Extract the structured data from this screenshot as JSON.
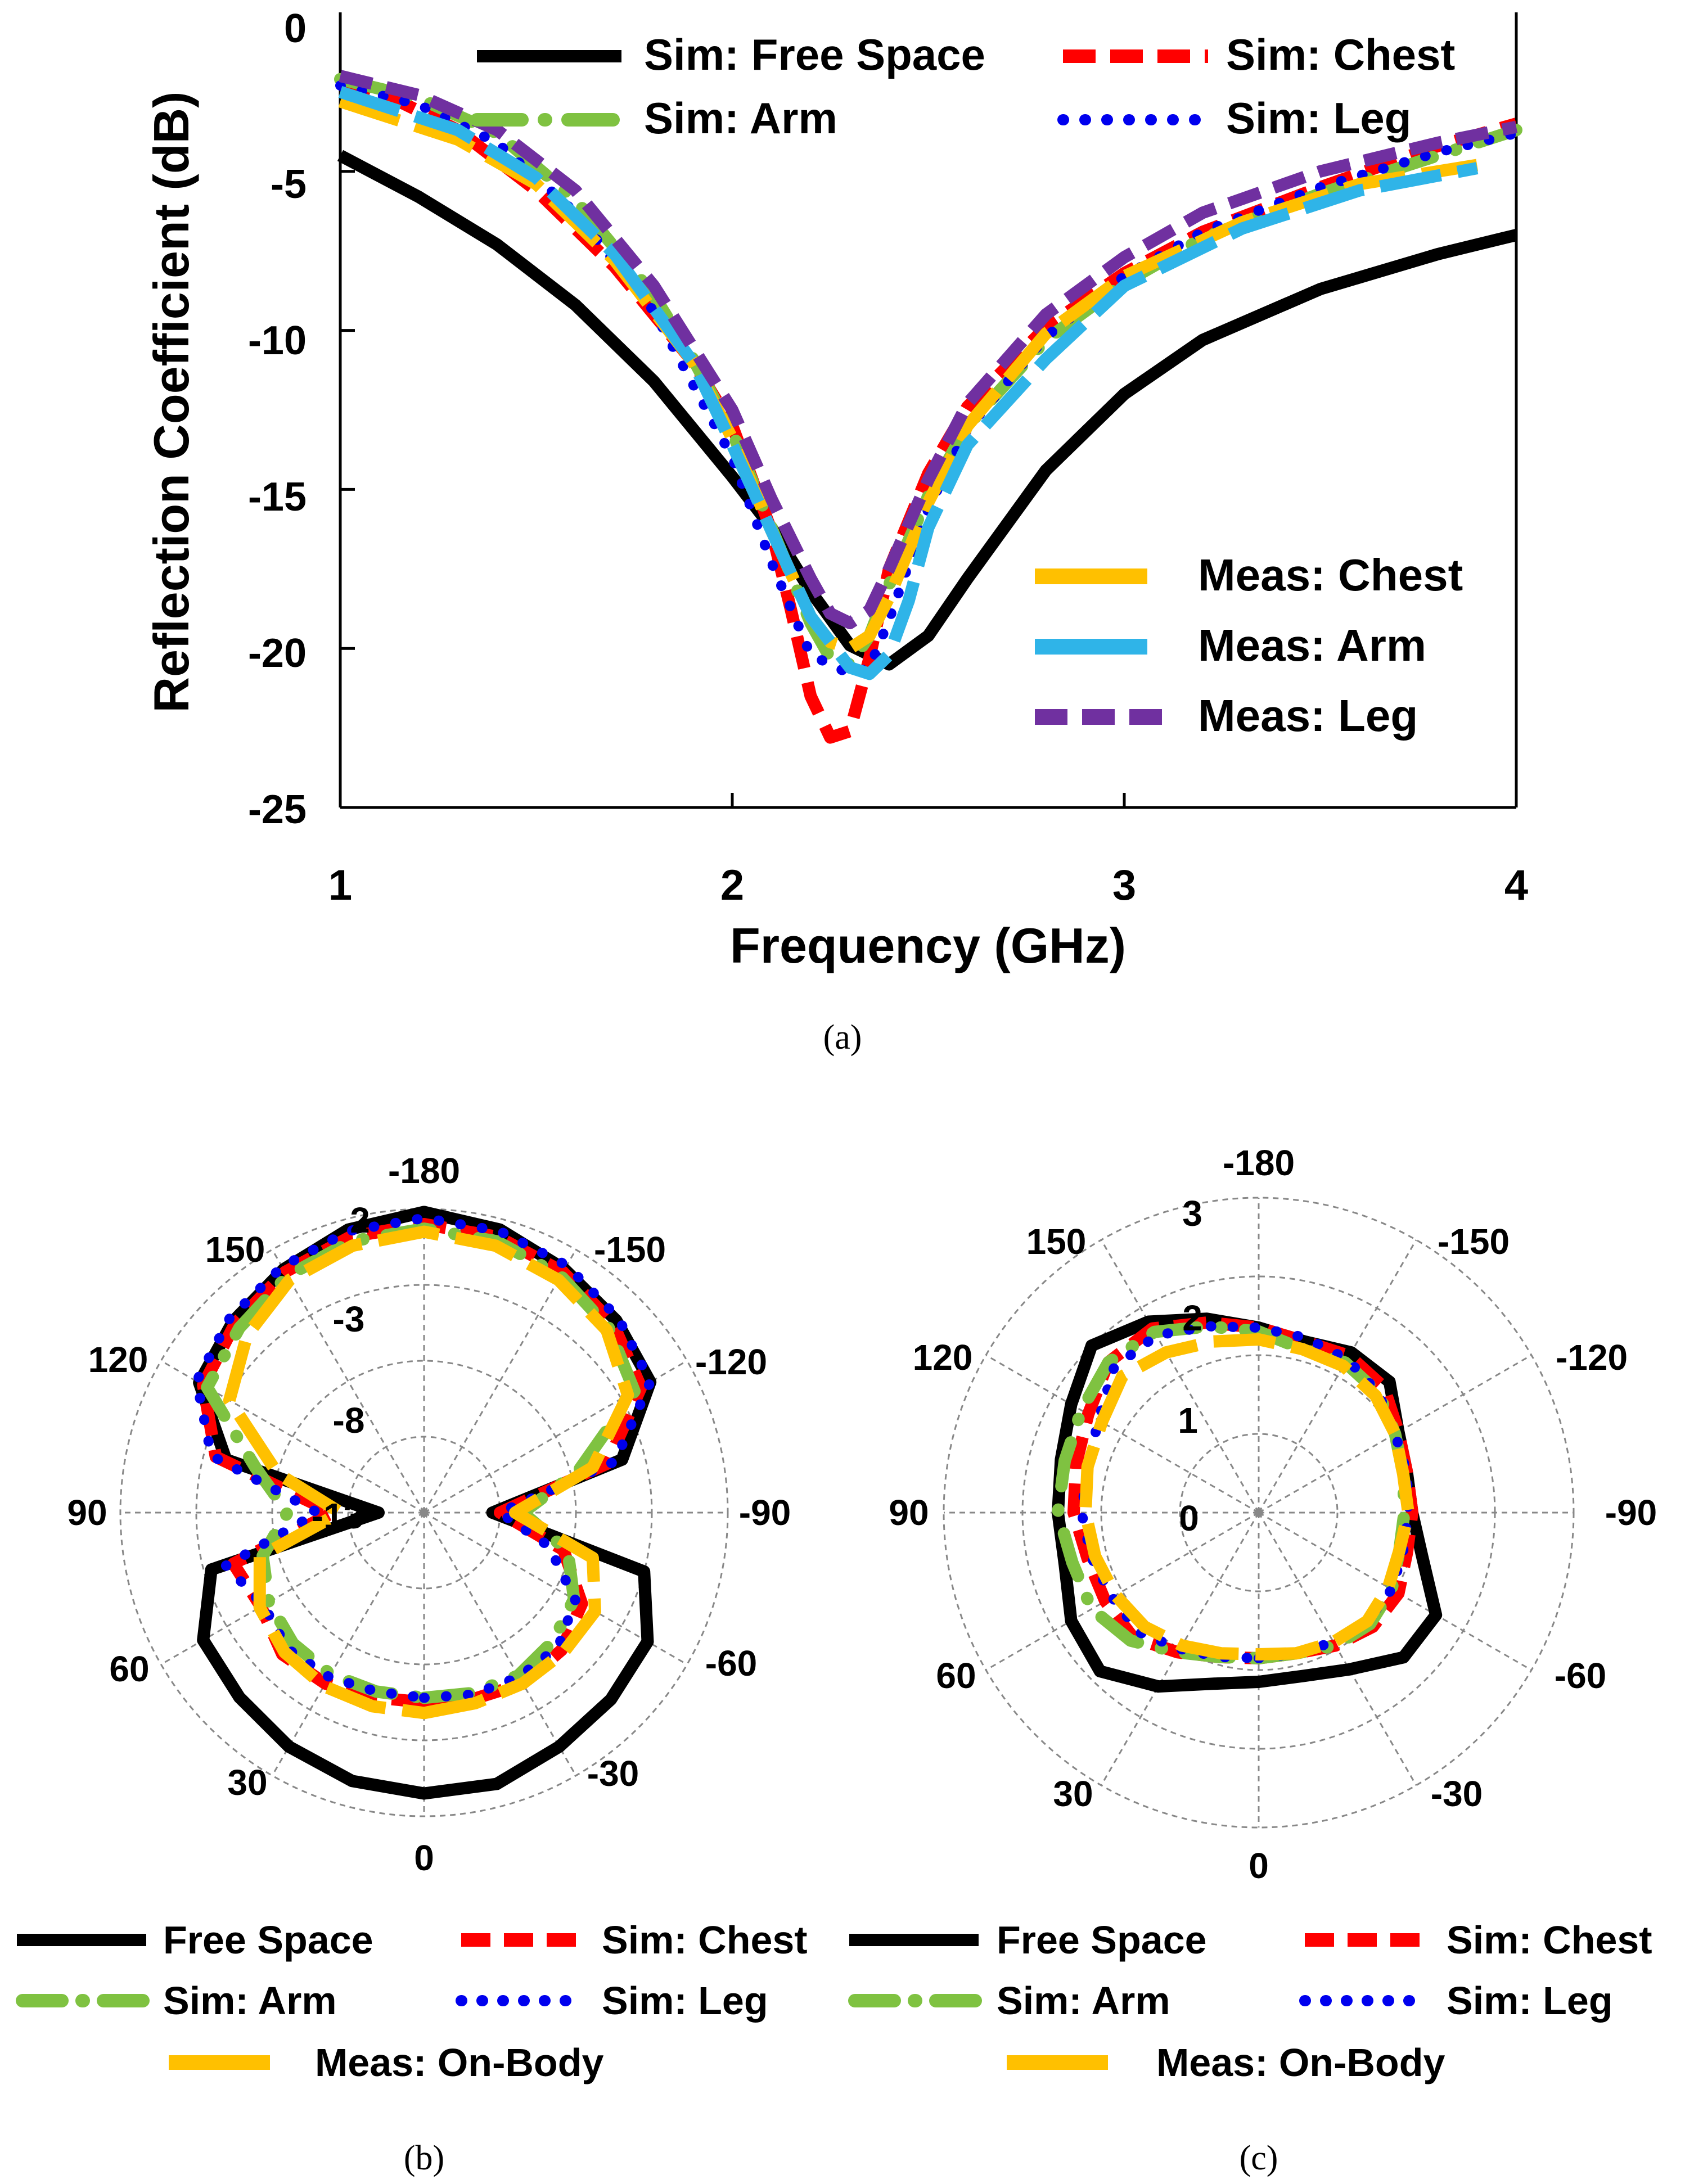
{
  "chart_data": [
    {
      "id": "a",
      "type": "line",
      "caption": "(a)",
      "xlabel": "Frequency (GHz)",
      "ylabel": "Reflection Coefficient (dB)",
      "xlim": [
        1,
        4
      ],
      "ylim": [
        -25,
        0
      ],
      "xticks": [
        "1",
        "2",
        "3",
        "4"
      ],
      "yticks": [
        "0",
        "-5",
        "-10",
        "-15",
        "-20",
        "-25"
      ],
      "series": [
        {
          "key": "sim-free-space",
          "name": "Sim: Free Space",
          "color": "#000000",
          "dash": "solid",
          "x": [
            1,
            1.2,
            1.4,
            1.6,
            1.8,
            2.0,
            2.1,
            2.2,
            2.3,
            2.4,
            2.5,
            2.6,
            2.8,
            3.0,
            3.2,
            3.5,
            3.8,
            4.0
          ],
          "y": [
            -4.5,
            -5.8,
            -7.3,
            -9.2,
            -11.6,
            -14.6,
            -16.2,
            -18.2,
            -19.9,
            -20.5,
            -19.6,
            -17.8,
            -14.4,
            -12.0,
            -10.3,
            -8.7,
            -7.6,
            -7.0
          ]
        },
        {
          "key": "sim-chest",
          "name": "Sim: Chest",
          "color": "#ff0000",
          "dash": "dash",
          "x": [
            1,
            1.1,
            1.3,
            1.5,
            1.7,
            1.9,
            2.0,
            2.1,
            2.15,
            2.2,
            2.25,
            2.3,
            2.35,
            2.4,
            2.5,
            2.6,
            2.8,
            3.0,
            3.2,
            3.5,
            3.8,
            4.0
          ],
          "y": [
            -2.1,
            -2.5,
            -3.7,
            -5.6,
            -8.0,
            -11.0,
            -13.0,
            -16.3,
            -18.8,
            -21.5,
            -22.8,
            -22.6,
            -20.3,
            -17.5,
            -14.5,
            -12.4,
            -9.9,
            -8.2,
            -6.9,
            -5.5,
            -4.2,
            -3.5
          ]
        },
        {
          "key": "sim-arm",
          "name": "Sim: Arm",
          "color": "#7fc241",
          "dash": "dashdot",
          "x": [
            1,
            1.2,
            1.4,
            1.6,
            1.8,
            1.9,
            2.0,
            2.1,
            2.2,
            2.25,
            2.3,
            2.35,
            2.4,
            2.5,
            2.6,
            2.8,
            3.0,
            3.2,
            3.5,
            3.8,
            4.0
          ],
          "y": [
            -2.1,
            -2.7,
            -3.8,
            -5.9,
            -8.9,
            -10.9,
            -13.2,
            -16.2,
            -19.2,
            -20.3,
            -20.5,
            -19.6,
            -18.0,
            -15.2,
            -13.0,
            -10.3,
            -8.5,
            -7.1,
            -5.7,
            -4.5,
            -3.7
          ]
        },
        {
          "key": "sim-leg",
          "name": "Sim: Leg",
          "color": "#0000ee",
          "dash": "dot",
          "x": [
            1,
            1.2,
            1.4,
            1.6,
            1.8,
            1.9,
            2.0,
            2.1,
            2.2,
            2.3,
            2.35,
            2.4,
            2.5,
            2.6,
            2.8,
            3.0,
            3.2,
            3.5,
            3.8,
            4.0
          ],
          "y": [
            -2.3,
            -2.9,
            -4.1,
            -6.3,
            -9.4,
            -11.7,
            -14.0,
            -17.3,
            -20.2,
            -20.8,
            -20.6,
            -19.1,
            -15.6,
            -13.1,
            -10.2,
            -8.3,
            -6.9,
            -5.5,
            -4.4,
            -3.8
          ]
        },
        {
          "key": "meas-chest",
          "name": "Meas: Chest",
          "color": "#ffc000",
          "dash": "longdash",
          "x": [
            1,
            1.3,
            1.5,
            1.7,
            1.9,
            2.0,
            2.1,
            2.2,
            2.25,
            2.3,
            2.35,
            2.4,
            2.5,
            2.6,
            2.8,
            3.0,
            3.3,
            3.6,
            3.9
          ],
          "y": [
            -2.8,
            -4.0,
            -5.4,
            -7.8,
            -11.0,
            -13.4,
            -16.3,
            -19.0,
            -19.8,
            -20.0,
            -19.6,
            -18.4,
            -15.4,
            -13.0,
            -10.1,
            -8.3,
            -6.6,
            -5.4,
            -4.8
          ]
        },
        {
          "key": "meas-arm",
          "name": "Meas: Arm",
          "color": "#2fb4e8",
          "dash": "longdash",
          "x": [
            1,
            1.3,
            1.5,
            1.7,
            1.9,
            2.0,
            2.1,
            2.2,
            2.3,
            2.35,
            2.4,
            2.45,
            2.5,
            2.6,
            2.8,
            3.0,
            3.3,
            3.6,
            3.9
          ],
          "y": [
            -2.5,
            -3.7,
            -5.2,
            -7.6,
            -11.0,
            -13.6,
            -16.3,
            -19.0,
            -20.6,
            -20.8,
            -20.2,
            -18.5,
            -16.2,
            -13.6,
            -10.9,
            -8.6,
            -6.8,
            -5.6,
            -4.9
          ]
        },
        {
          "key": "meas-leg",
          "name": "Meas: Leg",
          "color": "#7030a0",
          "dash": "dash",
          "x": [
            1,
            1.2,
            1.4,
            1.6,
            1.8,
            2.0,
            2.1,
            2.2,
            2.25,
            2.3,
            2.35,
            2.4,
            2.5,
            2.6,
            2.8,
            3.0,
            3.2,
            3.5,
            3.8,
            4.0
          ],
          "y": [
            -2.0,
            -2.6,
            -3.7,
            -5.6,
            -8.6,
            -12.5,
            -15.3,
            -17.8,
            -18.9,
            -19.2,
            -18.8,
            -17.5,
            -14.7,
            -12.3,
            -9.5,
            -7.7,
            -6.3,
            -5.0,
            -4.1,
            -3.6
          ]
        }
      ]
    },
    {
      "id": "b",
      "type": "polar",
      "caption": "(b)",
      "r_range": [
        -18,
        2
      ],
      "ring_labels": [
        "2",
        "-3",
        "-8",
        "-13"
      ],
      "angle_labels": [
        "-180",
        "-150",
        "-120",
        "-90",
        "-60",
        "-30",
        "0",
        "30",
        "60",
        "90",
        "120",
        "150"
      ],
      "theta": [
        0,
        15,
        30,
        45,
        60,
        75,
        90,
        105,
        120,
        135,
        150,
        165,
        180,
        195,
        210,
        225,
        240,
        255,
        270,
        285,
        300,
        315,
        330,
        345
      ],
      "series": [
        {
          "key": "free-space",
          "name": "Free Space",
          "color": "#000000",
          "dash": "solid",
          "r": [
            0.5,
            0.5,
            -0.2,
            -0.6,
            -1.0,
            -3.0,
            -13.5,
            -4.5,
            -0.8,
            -0.1,
            0.5,
            1.3,
            1.8,
            1.3,
            0.5,
            -0.2,
            -0.9,
            -4.5,
            -15.0,
            -3.5,
            -1.2,
            -0.8,
            -0.2,
            0.3
          ]
        },
        {
          "key": "sim-chest",
          "name": "Sim: Chest",
          "color": "#ff0000",
          "dash": "dash",
          "r": [
            -5.5,
            -5.3,
            -5.0,
            -5.2,
            -6.0,
            -8.5,
            -13.0,
            -5.5,
            -1.5,
            -0.4,
            0.3,
            0.8,
            1.0,
            0.8,
            0.3,
            -0.4,
            -1.2,
            -3.8,
            -12.0,
            -5.0,
            -5.6,
            -4.8,
            -5.0,
            -5.4
          ]
        },
        {
          "key": "sim-arm",
          "name": "Sim: Arm",
          "color": "#7fc241",
          "dash": "dashdot",
          "r": [
            -5.8,
            -5.7,
            -5.6,
            -6.0,
            -6.6,
            -8.2,
            -11.5,
            -7.5,
            -2.0,
            -0.8,
            0.0,
            0.5,
            0.7,
            0.5,
            0.0,
            -0.8,
            -1.5,
            -6.5,
            -9.0,
            -7.0,
            -6.2,
            -5.8,
            -5.7,
            -5.8
          ]
        },
        {
          "key": "sim-leg",
          "name": "Sim: Leg",
          "color": "#0000ee",
          "dash": "dot",
          "r": [
            -5.8,
            -5.6,
            -5.5,
            -5.5,
            -6.5,
            -9.5,
            -13.0,
            -5.0,
            -0.8,
            0.1,
            0.8,
            1.2,
            1.4,
            1.2,
            0.7,
            0.1,
            -0.7,
            -3.5,
            -11.0,
            -4.5,
            -5.8,
            -5.3,
            -5.5,
            -5.8
          ]
        },
        {
          "key": "meas-on-body",
          "name": "Meas: On-Body",
          "color": "#ffc000",
          "dash": "longdash",
          "r": [
            -4.8,
            -5.0,
            -5.0,
            -5.0,
            -5.0,
            -6.5,
            -12.0,
            -6.5,
            -2.5,
            -1.0,
            -0.3,
            0.2,
            0.5,
            0.2,
            -0.3,
            -1.5,
            -3.2,
            -8.0,
            -12.5,
            -6.8,
            -5.5,
            -5.0,
            -4.8,
            -4.8
          ]
        }
      ]
    },
    {
      "id": "c",
      "type": "polar",
      "caption": "(c)",
      "r_range": [
        -1,
        3
      ],
      "ring_labels": [
        "3",
        "2",
        "1",
        "0"
      ],
      "angle_labels": [
        "-180",
        "-150",
        "-120",
        "-90",
        "-60",
        "-30",
        "0",
        "30",
        "60",
        "90",
        "120",
        "150"
      ],
      "theta": [
        0,
        15,
        30,
        45,
        60,
        75,
        90,
        105,
        120,
        135,
        150,
        165,
        180,
        195,
        210,
        225,
        240,
        255,
        270,
        285,
        300,
        315,
        330,
        345
      ],
      "series": [
        {
          "key": "free-space",
          "name": "Free Space",
          "color": "#000000",
          "dash": "solid",
          "r": [
            1.15,
            1.15,
            1.3,
            1.6,
            1.6,
            1.15,
            0.95,
            0.95,
            1.05,
            1.35,
            1.35,
            1.25,
            1.35,
            1.55,
            1.8,
            2.0,
            1.75,
            1.6,
            1.55,
            1.55,
            1.75,
            1.85,
            1.55,
            1.25
          ]
        },
        {
          "key": "sim-chest",
          "name": "Sim: Chest",
          "color": "#ff0000",
          "dash": "dash",
          "r": [
            0.85,
            0.85,
            0.95,
            1.05,
            1.05,
            0.95,
            0.95,
            0.95,
            1.05,
            1.25,
            1.3,
            1.25,
            1.35,
            1.5,
            1.7,
            1.7,
            1.5,
            1.4,
            1.35,
            1.25,
            1.25,
            1.25,
            1.05,
            0.9
          ]
        },
        {
          "key": "sim-arm",
          "name": "Sim: Arm",
          "color": "#7fc241",
          "dash": "dashdot",
          "r": [
            0.85,
            0.85,
            0.95,
            1.0,
            0.95,
            0.85,
            0.85,
            0.9,
            1.0,
            1.15,
            1.2,
            1.15,
            1.3,
            1.45,
            1.65,
            1.7,
            1.6,
            1.55,
            1.55,
            1.45,
            1.45,
            1.3,
            1.05,
            0.9
          ]
        },
        {
          "key": "sim-leg",
          "name": "Sim: Leg",
          "color": "#0000ee",
          "dash": "dot",
          "r": [
            0.85,
            0.85,
            0.9,
            0.95,
            0.95,
            0.9,
            0.9,
            0.95,
            1.0,
            1.15,
            1.25,
            1.3,
            1.35,
            1.45,
            1.6,
            1.6,
            1.35,
            1.25,
            1.25,
            1.2,
            1.15,
            1.15,
            1.0,
            0.9
          ]
        },
        {
          "key": "meas-on-body",
          "name": "Meas: On-Body",
          "color": "#ffc000",
          "dash": "longdash",
          "r": [
            0.8,
            0.85,
            0.9,
            0.95,
            0.9,
            0.85,
            0.9,
            0.9,
            1.0,
            1.1,
            1.15,
            1.15,
            1.2,
            1.25,
            1.35,
            1.45,
            1.3,
            1.25,
            1.2,
            1.15,
            1.1,
            1.05,
            0.95,
            0.85
          ]
        }
      ]
    }
  ],
  "legend_b": [
    "Free Space",
    "Sim: Chest",
    "Sim: Arm",
    "Sim: Leg",
    "Meas: On-Body"
  ],
  "legend_c": [
    "Free Space",
    "Sim: Chest",
    "Sim: Arm",
    "Sim: Leg",
    "Meas: On-Body"
  ]
}
